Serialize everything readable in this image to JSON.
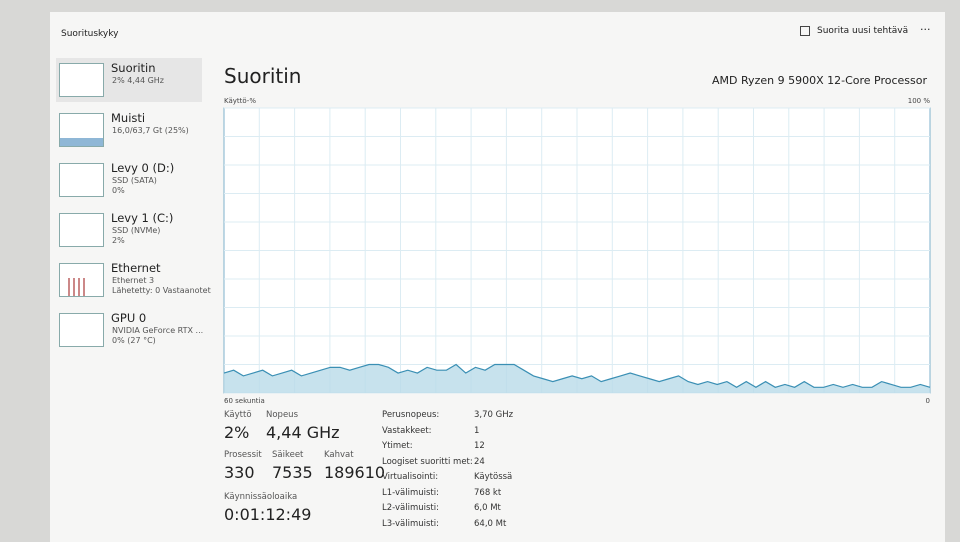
{
  "header": {
    "title": "Suorituskyky",
    "action": "Suorita uusi tehtävä",
    "more": "···"
  },
  "sidebar": {
    "items": [
      {
        "name": "Suoritin",
        "line1": "2%  4,44 GHz"
      },
      {
        "name": "Muisti",
        "line1": "16,0/63,7 Gt (25%)"
      },
      {
        "name": "Levy 0 (D:)",
        "line1": "SSD (SATA)",
        "line2": "0%"
      },
      {
        "name": "Levy 1 (C:)",
        "line1": "SSD (NVMe)",
        "line2": "2%"
      },
      {
        "name": "Ethernet",
        "line1": "Ethernet 3",
        "line2": "Lähetetty: 0 Vastaanotet"
      },
      {
        "name": "GPU 0",
        "line1": "NVIDIA GeForce RTX ...",
        "line2": "0% (27 °C)"
      }
    ]
  },
  "main": {
    "title": "Suoritin",
    "processor": "AMD Ryzen 9 5900X 12-Core Processor"
  },
  "graph": {
    "y_label": "Käyttö-%",
    "x_label": "60 sekuntia",
    "ylim": [
      0,
      100
    ],
    "yticks": [
      0,
      {
        "value": 100,
        "label": "100 %"
      }
    ],
    "values": [
      7,
      8,
      6,
      7,
      8,
      6,
      7,
      8,
      6,
      7,
      8,
      9,
      9,
      8,
      9,
      10,
      10,
      9,
      7,
      8,
      7,
      9,
      8,
      8,
      10,
      7,
      9,
      8,
      10,
      10,
      10,
      8,
      6,
      5,
      4,
      5,
      6,
      5,
      6,
      4,
      5,
      6,
      7,
      6,
      5,
      4,
      5,
      6,
      4,
      3,
      4,
      3,
      4,
      2,
      4,
      2,
      4,
      2,
      3,
      2,
      4,
      2,
      2,
      3,
      2,
      3,
      2,
      2,
      4,
      3,
      2,
      2,
      3,
      2
    ]
  },
  "stats": {
    "rows": [
      [
        {
          "label": "Käyttö",
          "value": "2%"
        },
        {
          "label": "Nopeus",
          "value": "4,44 GHz"
        }
      ],
      [
        {
          "label": "Prosessit",
          "value": "330"
        },
        {
          "label": "Säikeet",
          "value": "7535"
        },
        {
          "label": "Kahvat",
          "value": "189610"
        }
      ],
      [
        {
          "label": "Käynnissäoloaika",
          "value": "0:01:12:49"
        }
      ]
    ]
  },
  "details": [
    [
      "Perusnopeus:",
      "3,70 GHz"
    ],
    [
      "Vastakkeet:",
      "1"
    ],
    [
      "Ytimet:",
      "12"
    ],
    [
      "Loogiset suoritti met:",
      "24"
    ],
    [
      "Virtualisointi:",
      "Käytössä"
    ],
    [
      "L1-välimuisti:",
      "768 kt"
    ],
    [
      "L2-välimuisti:",
      "6,0 Mt"
    ],
    [
      "L3-välimuisti:",
      "64,0 Mt"
    ]
  ]
}
